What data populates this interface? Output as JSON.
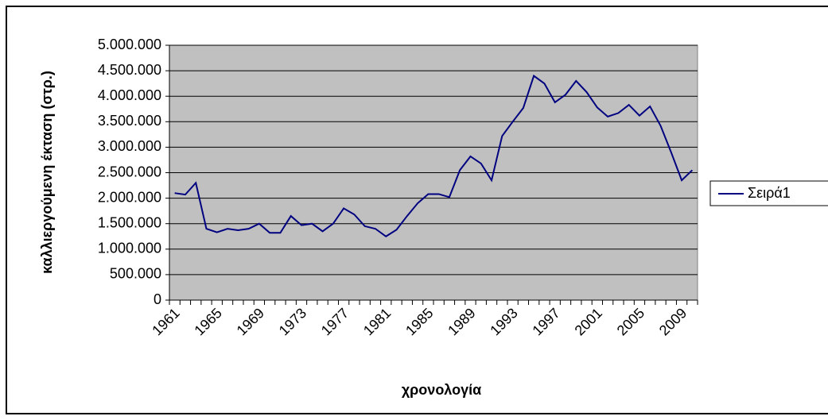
{
  "chart_data": {
    "type": "line",
    "x_label": "χρονολογία",
    "y_label": "καλλιεργούμενη έκταση (στρ.)",
    "categories": [
      "1961",
      null,
      null,
      null,
      "1965",
      null,
      null,
      null,
      "1969",
      null,
      null,
      null,
      "1973",
      null,
      null,
      null,
      "1977",
      null,
      null,
      null,
      "1981",
      null,
      null,
      null,
      "1985",
      null,
      null,
      null,
      "1989",
      null,
      null,
      null,
      "1993",
      null,
      null,
      null,
      "1997",
      null,
      null,
      null,
      "2001",
      null,
      null,
      null,
      "2005",
      null,
      null,
      null,
      "2009",
      null
    ],
    "series": [
      {
        "name": "Σειρά1",
        "color": "#000080",
        "values": [
          2100000,
          2070000,
          2300000,
          1400000,
          1330000,
          1400000,
          1370000,
          1400000,
          1500000,
          1320000,
          1320000,
          1650000,
          1470000,
          1500000,
          1350000,
          1500000,
          1800000,
          1680000,
          1450000,
          1400000,
          1250000,
          1380000,
          1650000,
          1900000,
          2080000,
          2080000,
          2020000,
          2550000,
          2820000,
          2680000,
          2350000,
          3220000,
          3500000,
          3770000,
          4400000,
          4250000,
          3880000,
          4030000,
          4300000,
          4080000,
          3780000,
          3600000,
          3670000,
          3830000,
          3620000,
          3800000,
          3420000,
          2900000,
          2350000,
          2550000
        ]
      }
    ],
    "ylim": [
      0,
      5000000
    ],
    "yticks": [
      0,
      {
        "value": 500000,
        "label": "500.000"
      },
      {
        "value": 1000000,
        "label": "1.000.000"
      },
      {
        "value": 1500000,
        "label": "1.500.000"
      },
      {
        "value": 2000000,
        "label": "2.000.000"
      },
      {
        "value": 2500000,
        "label": "2.500.000"
      },
      {
        "value": 3000000,
        "label": "3.000.000"
      },
      {
        "value": 3500000,
        "label": "3.500.000"
      },
      {
        "value": 4000000,
        "label": "4.000.000"
      },
      {
        "value": 4500000,
        "label": "4.500.000"
      },
      {
        "value": 5000000,
        "label": "5.000.000"
      }
    ],
    "grid": true,
    "plot_background": "#c0c0c0",
    "legend": "right"
  }
}
